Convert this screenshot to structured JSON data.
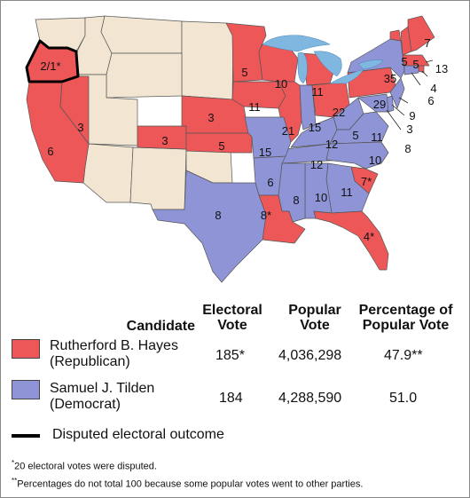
{
  "colors": {
    "republican": "#ee5757",
    "democrat": "#8e94d6",
    "territory": "#f2e6d2",
    "water": "#7fb7e0",
    "border": "#555555",
    "disputed": "#000000"
  },
  "state_votes": {
    "OR": "2/1*",
    "CA": "6",
    "NV": "3",
    "CO": "3",
    "NE": "3",
    "KS": "5",
    "MN": "5",
    "IA": "11",
    "WI": "10",
    "IL": "21",
    "MI": "11",
    "IN": "15",
    "OH": "22",
    "PA": "29",
    "NY": "35",
    "VT": "5",
    "NH": "5",
    "ME": "7",
    "MA": "13",
    "RI": "4",
    "CT": "6",
    "NJ": "9",
    "DE": "3",
    "MD": "8",
    "WV": "5",
    "VA": "11",
    "KY": "12",
    "TN": "12",
    "NC": "10",
    "SC": "7*",
    "GA": "11",
    "AL": "10",
    "MS": "8",
    "AR": "6",
    "MO": "15",
    "TX": "8",
    "LA": "8*",
    "FL": "4*"
  },
  "table": {
    "headers": {
      "candidate": "Candidate",
      "electoral": [
        "Electoral",
        "Vote"
      ],
      "popular": [
        "Popular",
        "Vote"
      ],
      "percentage": [
        "Percentage of",
        "Popular Vote"
      ]
    },
    "rows": [
      {
        "name": "Rutherford B. Hayes",
        "party": "(Republican)",
        "electoral": "185*",
        "popular": "4,036,298",
        "percentage": "47.9**"
      },
      {
        "name": "Samuel J. Tilden",
        "party": "(Democrat)",
        "electoral": "184",
        "popular": "4,288,590",
        "percentage": "51.0"
      }
    ],
    "disputed_label": "Disputed electoral outcome"
  },
  "notes": {
    "n1_mark": "*",
    "n1": "20 electoral votes were disputed.",
    "n2_mark": "**",
    "n2": "Percentages do not total 100 because some popular votes went to other parties."
  }
}
